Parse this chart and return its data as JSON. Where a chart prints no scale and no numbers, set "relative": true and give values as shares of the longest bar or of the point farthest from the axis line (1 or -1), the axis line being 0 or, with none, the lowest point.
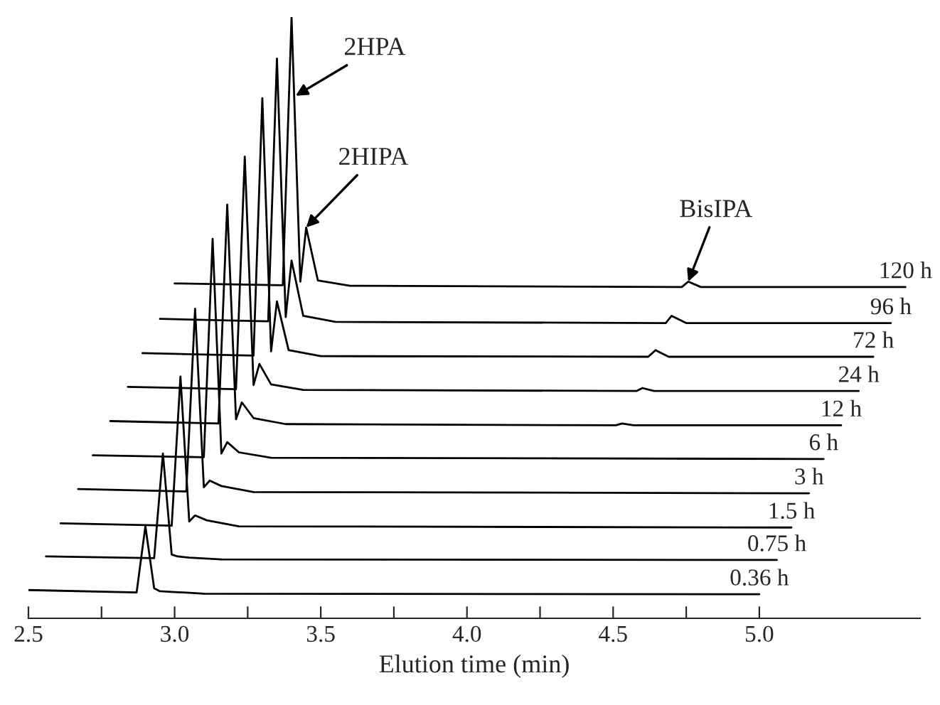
{
  "chart_data": {
    "type": "line",
    "relative": true,
    "xlabel": "Elution time (min)",
    "xlim": [
      2.5,
      5.55
    ],
    "xticks": [
      2.5,
      {
        "value": 2.75,
        "label": null
      },
      {
        "value": 3,
        "label": "3.0"
      },
      {
        "value": 3.25,
        "label": null
      },
      3.5,
      {
        "value": 3.75,
        "label": null
      },
      {
        "value": 4,
        "label": "4.0"
      },
      {
        "value": 4.25,
        "label": null
      },
      4.5,
      {
        "value": 4.75,
        "label": null
      },
      {
        "value": 5,
        "label": "5.0"
      }
    ],
    "tick_labels": "x",
    "series": [
      {
        "name": "0.36 h",
        "color": "#000000",
        "x": [
          2.5,
          2.87,
          2.9,
          2.93,
          2.95,
          2.99,
          3.1,
          5.0
        ],
        "values": [
          0.047,
          0.043,
          0.153,
          0.05,
          0.045,
          0.044,
          0.041,
          0.04
        ]
      },
      {
        "name": "0.75 h",
        "color": "#000000",
        "x": [
          2.56,
          2.93,
          2.96,
          2.99,
          3.01,
          3.05,
          3.16,
          5.06
        ],
        "values": [
          0.103,
          0.1,
          0.274,
          0.106,
          0.103,
          0.101,
          0.098,
          0.097
        ]
      },
      {
        "name": "1.5 h",
        "color": "#000000",
        "x": [
          2.61,
          2.99,
          3.02,
          3.05,
          3.07,
          3.11,
          3.22,
          5.11
        ],
        "values": [
          0.158,
          0.154,
          0.402,
          0.161,
          0.171,
          0.163,
          0.153,
          0.151
        ]
      },
      {
        "name": "3 h",
        "color": "#000000",
        "x": [
          2.67,
          3.04,
          3.07,
          3.1,
          3.12,
          3.16,
          3.27,
          5.17
        ],
        "values": [
          0.215,
          0.211,
          0.515,
          0.218,
          0.229,
          0.22,
          0.21,
          0.208
        ]
      },
      {
        "name": "6 h",
        "color": "#000000",
        "x": [
          2.72,
          3.1,
          3.13,
          3.16,
          3.18,
          3.22,
          3.33,
          5.22
        ],
        "values": [
          0.271,
          0.268,
          0.631,
          0.274,
          0.293,
          0.276,
          0.267,
          0.265
        ]
      },
      {
        "name": "12 h",
        "color": "#000000",
        "x": [
          2.78,
          3.15,
          3.18,
          3.21,
          3.23,
          3.27,
          3.38,
          4.51,
          4.53,
          4.57,
          5.28
        ],
        "values": [
          0.328,
          0.324,
          0.688,
          0.331,
          0.359,
          0.333,
          0.323,
          0.321,
          0.324,
          0.321,
          0.321
        ]
      },
      {
        "name": "24 h",
        "color": "#000000",
        "x": [
          2.84,
          3.21,
          3.24,
          3.27,
          3.29,
          3.33,
          3.44,
          4.58,
          4.6,
          4.64,
          5.34
        ],
        "values": [
          0.385,
          0.381,
          0.768,
          0.388,
          0.423,
          0.389,
          0.38,
          0.378,
          0.383,
          0.378,
          0.378
        ]
      },
      {
        "name": "72 h",
        "color": "#000000",
        "x": [
          2.89,
          3.27,
          3.3,
          3.33,
          3.35,
          3.39,
          3.5,
          4.62,
          4.645,
          4.69,
          5.39
        ],
        "values": [
          0.441,
          0.437,
          0.865,
          0.444,
          0.527,
          0.446,
          0.436,
          0.435,
          0.446,
          0.435,
          0.435
        ]
      },
      {
        "name": "96 h",
        "color": "#000000",
        "x": [
          2.95,
          3.32,
          3.35,
          3.38,
          3.4,
          3.44,
          3.55,
          4.68,
          4.7,
          4.75,
          5.45
        ],
        "values": [
          0.498,
          0.494,
          0.931,
          0.501,
          0.595,
          0.503,
          0.493,
          0.491,
          0.503,
          0.491,
          0.491
        ]
      },
      {
        "name": "120 h",
        "color": "#000000",
        "x": [
          3.0,
          3.37,
          3.4,
          3.43,
          3.45,
          3.49,
          3.6,
          4.735,
          4.757,
          4.8,
          5.5
        ],
        "values": [
          0.557,
          0.554,
          1.0,
          0.56,
          0.65,
          0.562,
          0.553,
          0.551,
          0.56,
          0.551,
          0.551
        ]
      }
    ],
    "annotations": [
      {
        "text": "2HPA",
        "x": 3.414,
        "y": 0.869
      },
      {
        "text": "2HIPA",
        "x": 3.45,
        "y": 0.65
      },
      {
        "text": "BisIPA",
        "x": 4.757,
        "y": 0.56
      }
    ]
  }
}
